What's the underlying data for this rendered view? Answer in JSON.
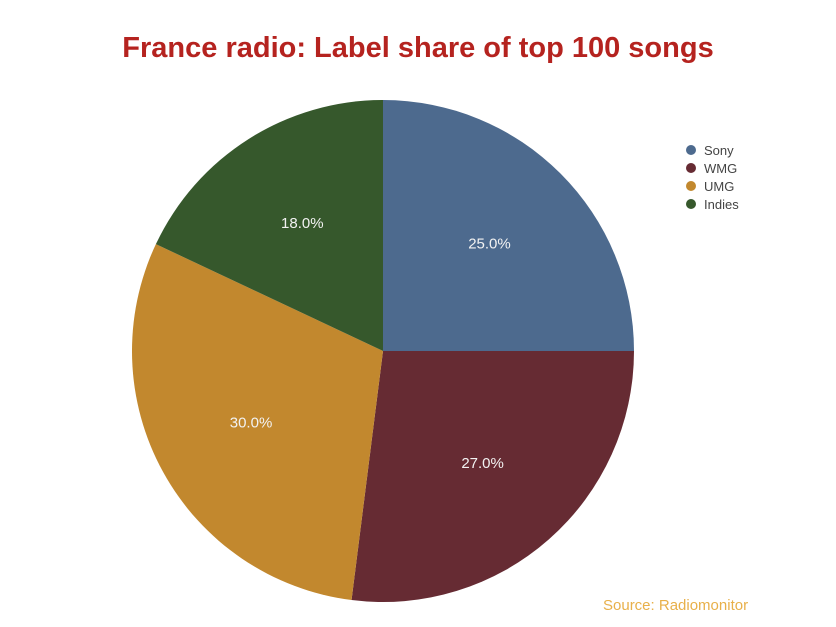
{
  "chart_data": {
    "type": "pie",
    "title": "France radio: Label share of top 100 songs",
    "categories": [
      "Sony",
      "WMG",
      "UMG",
      "Indies"
    ],
    "values": [
      25.0,
      27.0,
      30.0,
      18.0
    ],
    "value_labels": [
      "25.0%",
      "27.0%",
      "30.0%",
      "18.0%"
    ],
    "colors": [
      "#4d6a8e",
      "#662b33",
      "#c2882e",
      "#36582c"
    ],
    "start_angle": "12 o'clock",
    "direction": "clockwise",
    "legend_position": "top-right",
    "source": "Source: Radiomonitor"
  }
}
